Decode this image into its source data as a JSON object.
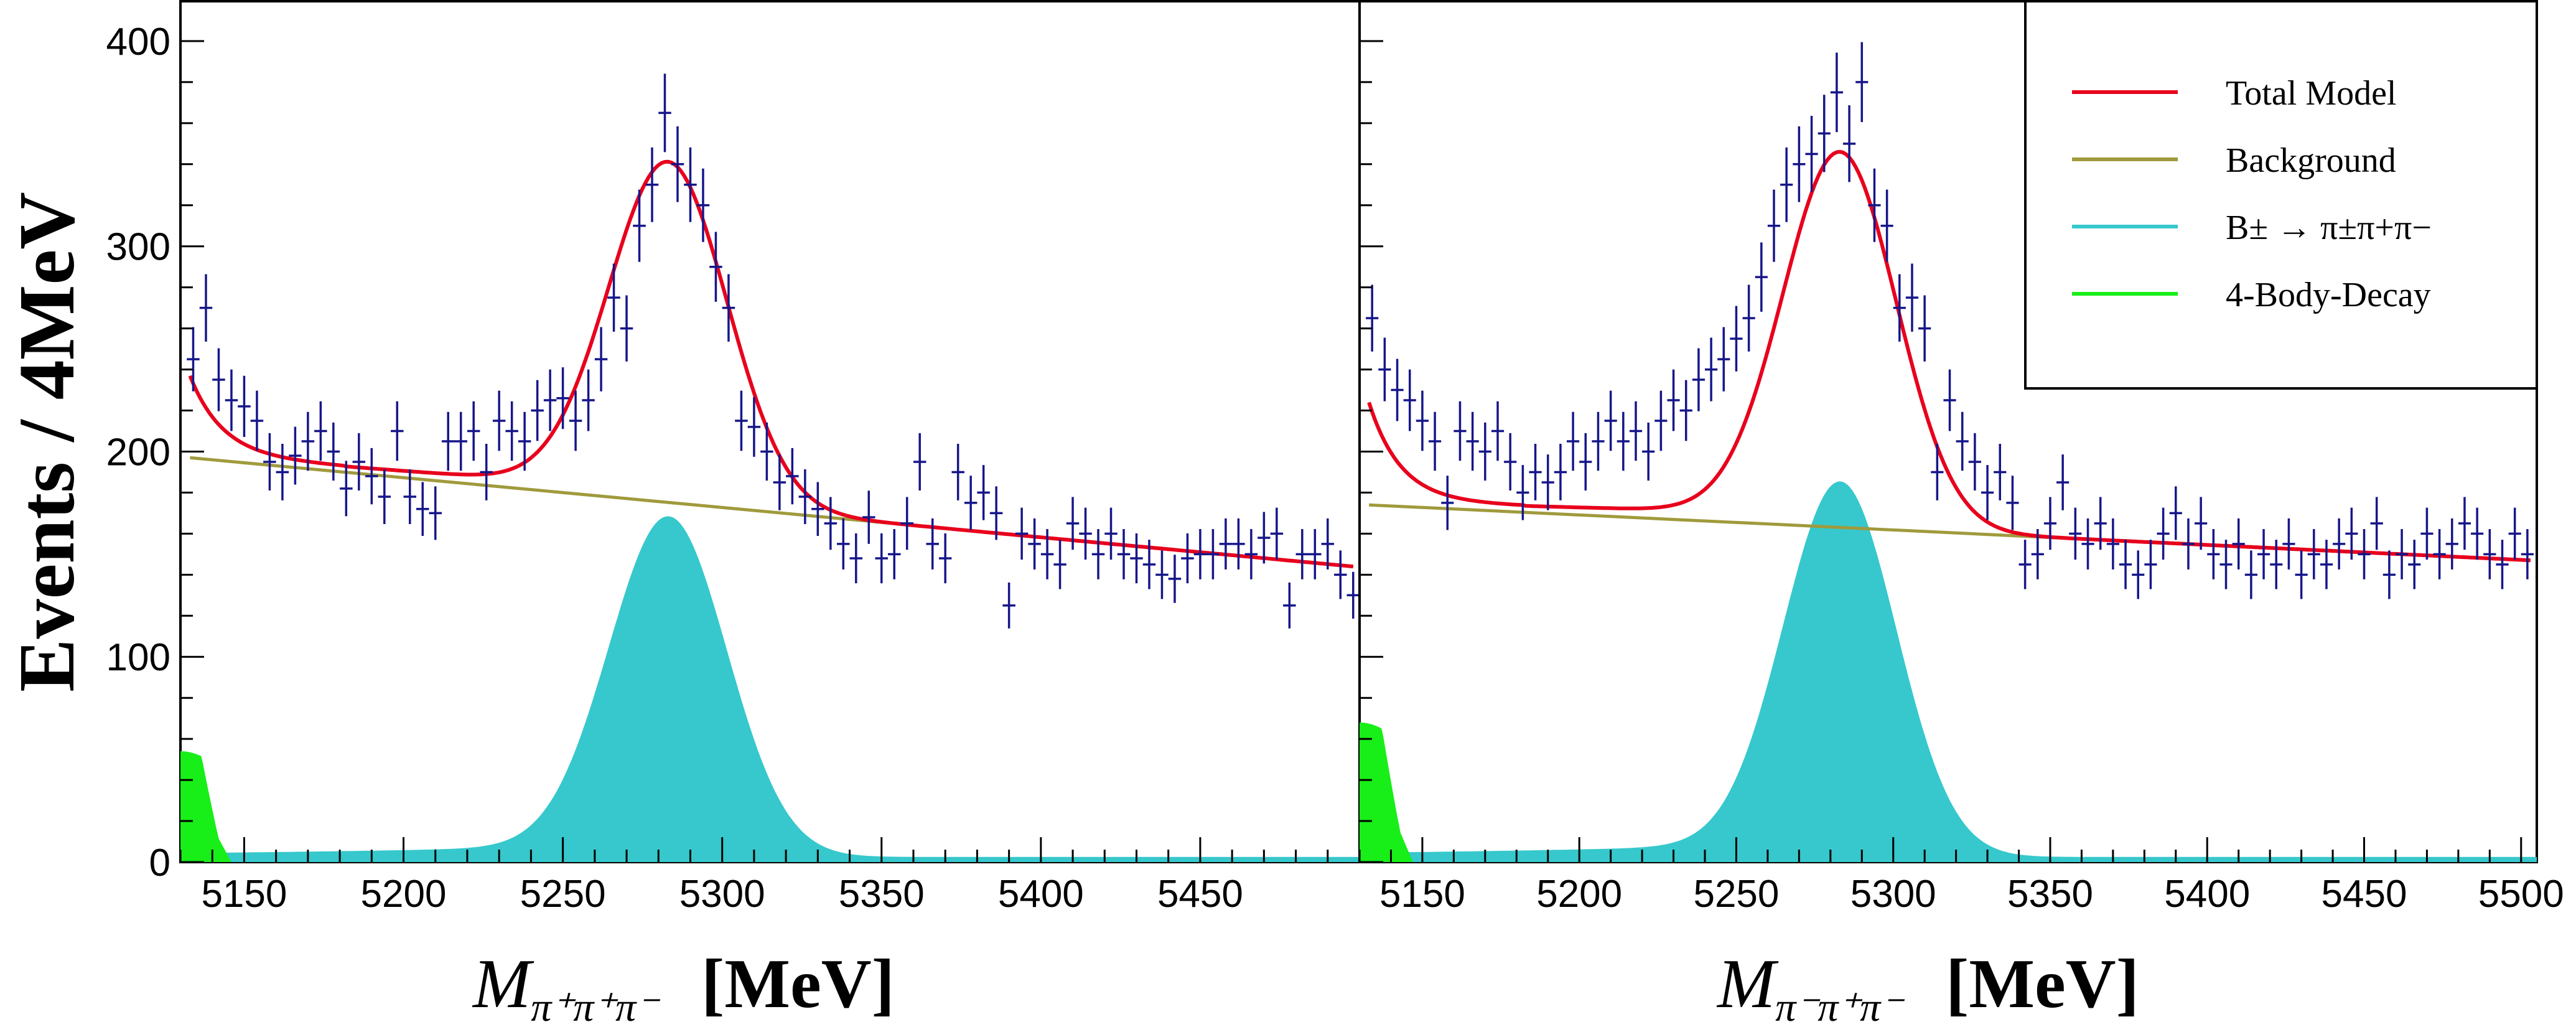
{
  "chart_data": [
    {
      "type": "scatter",
      "panel": "left",
      "title": "",
      "ylabel": "Events / 4MeV",
      "xlabel": {
        "symbol": "M",
        "subscript": "π⁺π⁺π⁻",
        "unit": "[MeV]"
      },
      "xlim": [
        5130,
        5500
      ],
      "ylim": [
        0,
        420
      ],
      "xticks": [
        5150,
        5200,
        5250,
        5300,
        5350,
        5400,
        5450
      ],
      "yticks": [
        0,
        100,
        200,
        300,
        400
      ],
      "signal": {
        "mean": 5283,
        "sigma": 18.5,
        "amplitude": 166
      },
      "background_line": {
        "x": [
          5133,
          5498
        ],
        "y": [
          197,
          144
        ]
      },
      "four_body": {
        "x_end": 5142,
        "y_start": 54
      },
      "series": [
        {
          "name": "Data",
          "x": [
            5134,
            5138,
            5142,
            5146,
            5150,
            5154,
            5158,
            5162,
            5166,
            5170,
            5174,
            5178,
            5182,
            5186,
            5190,
            5194,
            5198,
            5202,
            5206,
            5210,
            5214,
            5218,
            5222,
            5226,
            5230,
            5234,
            5238,
            5242,
            5246,
            5250,
            5254,
            5258,
            5262,
            5266,
            5270,
            5274,
            5278,
            5282,
            5286,
            5290,
            5294,
            5298,
            5302,
            5306,
            5310,
            5314,
            5318,
            5322,
            5326,
            5330,
            5334,
            5338,
            5342,
            5346,
            5350,
            5354,
            5358,
            5362,
            5366,
            5370,
            5374,
            5378,
            5382,
            5386,
            5390,
            5394,
            5398,
            5402,
            5406,
            5410,
            5414,
            5418,
            5422,
            5426,
            5430,
            5434,
            5438,
            5442,
            5446,
            5450,
            5454,
            5458,
            5462,
            5466,
            5470,
            5474,
            5478,
            5482,
            5486,
            5490,
            5494,
            5498
          ],
          "y": [
            245,
            270,
            235,
            225,
            222,
            215,
            195,
            190,
            198,
            205,
            210,
            200,
            182,
            195,
            188,
            178,
            210,
            178,
            172,
            170,
            205,
            205,
            210,
            190,
            215,
            210,
            205,
            220,
            225,
            226,
            215,
            225,
            245,
            275,
            260,
            310,
            330,
            365,
            340,
            330,
            320,
            290,
            270,
            215,
            212,
            200,
            185,
            188,
            178,
            172,
            165,
            155,
            148,
            168,
            148,
            150,
            165,
            195,
            155,
            148,
            190,
            175,
            180,
            170,
            125,
            160,
            155,
            150,
            145,
            165,
            160,
            150,
            160,
            150,
            148,
            145,
            140,
            138,
            148,
            150,
            150,
            155,
            155,
            150,
            158,
            160,
            125,
            150,
            150,
            155,
            140,
            130
          ]
        }
      ]
    },
    {
      "type": "scatter",
      "panel": "right",
      "title": "",
      "xlabel": {
        "symbol": "M",
        "subscript": "π⁻π⁺π⁻",
        "unit": "[MeV]"
      },
      "xlim": [
        5130,
        5505
      ],
      "ylim": [
        0,
        420
      ],
      "xticks": [
        5150,
        5200,
        5250,
        5300,
        5350,
        5400,
        5450,
        5500
      ],
      "signal": {
        "mean": 5283,
        "sigma": 18.0,
        "amplitude": 183
      },
      "background_line": {
        "x": [
          5133,
          5503
        ],
        "y": [
          174,
          147
        ]
      },
      "four_body": {
        "x_end": 5143,
        "y_start": 68
      },
      "series": [
        {
          "name": "Data",
          "x": [
            5134,
            5138,
            5142,
            5146,
            5150,
            5154,
            5158,
            5162,
            5166,
            5170,
            5174,
            5178,
            5182,
            5186,
            5190,
            5194,
            5198,
            5202,
            5206,
            5210,
            5214,
            5218,
            5222,
            5226,
            5230,
            5234,
            5238,
            5242,
            5246,
            5250,
            5254,
            5258,
            5262,
            5266,
            5270,
            5274,
            5278,
            5282,
            5286,
            5290,
            5294,
            5298,
            5302,
            5306,
            5310,
            5314,
            5318,
            5322,
            5326,
            5330,
            5334,
            5338,
            5342,
            5346,
            5350,
            5354,
            5358,
            5362,
            5366,
            5370,
            5374,
            5378,
            5382,
            5386,
            5390,
            5394,
            5398,
            5402,
            5406,
            5410,
            5414,
            5418,
            5422,
            5426,
            5430,
            5434,
            5438,
            5442,
            5446,
            5450,
            5454,
            5458,
            5462,
            5466,
            5470,
            5474,
            5478,
            5482,
            5486,
            5490,
            5494,
            5498,
            5502
          ],
          "y": [
            265,
            240,
            230,
            225,
            215,
            205,
            175,
            210,
            205,
            200,
            210,
            195,
            180,
            190,
            185,
            190,
            205,
            195,
            205,
            215,
            205,
            210,
            200,
            215,
            225,
            220,
            235,
            240,
            245,
            255,
            265,
            285,
            310,
            330,
            340,
            345,
            355,
            375,
            350,
            380,
            320,
            310,
            270,
            275,
            260,
            190,
            225,
            205,
            195,
            180,
            190,
            175,
            145,
            150,
            165,
            185,
            160,
            155,
            165,
            155,
            145,
            140,
            145,
            160,
            170,
            155,
            165,
            150,
            145,
            155,
            140,
            150,
            145,
            155,
            140,
            150,
            145,
            155,
            160,
            150,
            165,
            140,
            150,
            145,
            160,
            150,
            155,
            165,
            160,
            150,
            145,
            160,
            150
          ]
        }
      ]
    }
  ],
  "legend": {
    "position": "top-right",
    "items": [
      {
        "label": "Total Model",
        "color": "#e8001c"
      },
      {
        "label": "Background",
        "color": "#a09a3c"
      },
      {
        "label": "B± → π±π+π−",
        "color": "#36c8cc"
      },
      {
        "label": "4-Body-Decay",
        "color": "#18ee18"
      }
    ]
  },
  "colors": {
    "data": "#16168a",
    "total_model": "#e8001c",
    "background": "#a09a3c",
    "signal": "#36c8cc",
    "four_body": "#18ee18"
  }
}
